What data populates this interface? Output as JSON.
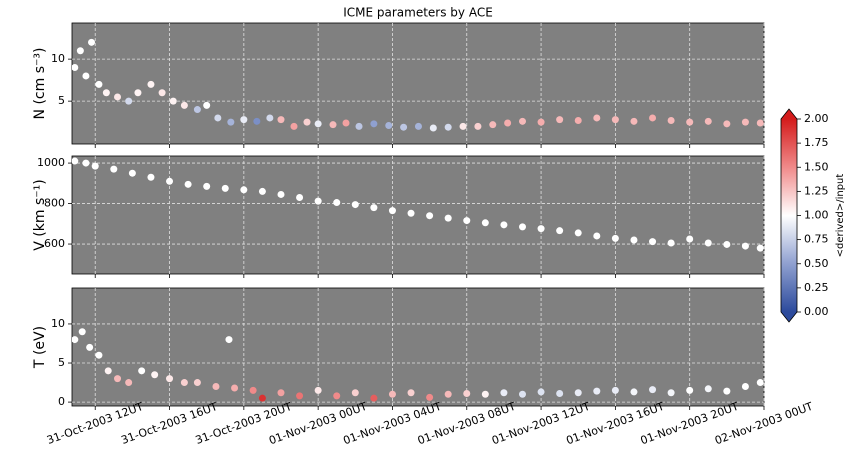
{
  "chart_data": [
    {
      "type": "scatter",
      "title": "ICME parameters by ACE",
      "ylabel": "N (cm s⁻³)",
      "ylim": [
        -0.1,
        14.3
      ],
      "yticks": [
        5,
        10
      ],
      "grid": true,
      "x": [
        10.9,
        11.2,
        11.5,
        11.8,
        12.2,
        12.6,
        13.2,
        13.8,
        14.3,
        15,
        15.6,
        16.2,
        16.8,
        17.5,
        18,
        18.6,
        19.3,
        20,
        20.7,
        21.4,
        22,
        22.7,
        23.4,
        24,
        24.8,
        25.5,
        26.2,
        27,
        27.8,
        28.6,
        29.4,
        30.2,
        31,
        31.8,
        32.6,
        33.4,
        34.2,
        35,
        36,
        37,
        38,
        39,
        40,
        41,
        42,
        43,
        44,
        45,
        46,
        47,
        47.8
      ],
      "series": [
        {
          "values": [
            9,
            11,
            8,
            12,
            7,
            6,
            5.5,
            5,
            6,
            7,
            6,
            5,
            4.5,
            4,
            4.5,
            3,
            2.5,
            2.8,
            2.6,
            3,
            2.8,
            2,
            2.5,
            2.3,
            2.2,
            2.4,
            2,
            2.3,
            2.1,
            1.9,
            2,
            1.8,
            1.9,
            2,
            2,
            2.2,
            2.4,
            2.6,
            2.5,
            2.8,
            2.7,
            3,
            2.8,
            2.6,
            3,
            2.7,
            2.5,
            2.6,
            2.3,
            2.5,
            2.4
          ],
          "c": [
            1.0,
            1.0,
            1.0,
            1.0,
            1.0,
            1.05,
            1.1,
            0.8,
            1.05,
            1.05,
            1.1,
            1.05,
            1.1,
            0.7,
            1.0,
            0.8,
            0.6,
            0.9,
            0.4,
            0.8,
            1.3,
            1.4,
            1.2,
            0.9,
            1.3,
            1.4,
            0.7,
            0.5,
            0.6,
            0.7,
            0.6,
            0.9,
            0.8,
            1.1,
            1.2,
            1.3,
            1.35,
            1.3,
            1.35,
            1.3,
            1.35,
            1.3,
            1.3,
            1.3,
            1.35,
            1.3,
            1.3,
            1.3,
            1.3,
            1.3,
            1.3
          ]
        }
      ]
    },
    {
      "type": "scatter",
      "ylabel": "V (km s⁻¹)",
      "ylim": [
        452,
        1035
      ],
      "yticks": [
        600,
        800,
        1000
      ],
      "grid": true,
      "x": [
        10.9,
        11.5,
        12,
        13,
        14,
        15,
        16,
        17,
        18,
        19,
        20,
        21,
        22,
        23,
        24,
        25,
        26,
        27,
        28,
        29,
        30,
        31,
        32,
        33,
        34,
        35,
        36,
        37,
        38,
        39,
        40,
        41,
        42,
        43,
        44,
        45,
        46,
        47,
        47.8
      ],
      "series": [
        {
          "color": "#ffffff",
          "values": [
            1010,
            1000,
            985,
            970,
            950,
            930,
            910,
            895,
            885,
            875,
            868,
            860,
            845,
            830,
            812,
            805,
            795,
            780,
            765,
            752,
            740,
            728,
            716,
            705,
            695,
            685,
            676,
            666,
            655,
            640,
            628,
            620,
            612,
            605,
            625,
            605,
            598,
            590,
            580
          ]
        }
      ]
    },
    {
      "type": "scatter",
      "ylabel": "T (eV)",
      "ylim": [
        -0.5,
        14.6
      ],
      "yticks": [
        0,
        5,
        10
      ],
      "grid": true,
      "xlim": [
        10.75,
        48
      ],
      "xticks": [
        {
          "value": 12,
          "label": "31-Oct-2003 12UT"
        },
        {
          "value": 16,
          "label": "31-Oct-2003 16UT"
        },
        {
          "value": 20,
          "label": "31-Oct-2003 20UT"
        },
        {
          "value": 24,
          "label": "01-Nov-2003 00UT"
        },
        {
          "value": 28,
          "label": "01-Nov-2003 04UT"
        },
        {
          "value": 32,
          "label": "01-Nov-2003 08UT"
        },
        {
          "value": 36,
          "label": "01-Nov-2003 12UT"
        },
        {
          "value": 40,
          "label": "01-Nov-2003 16UT"
        },
        {
          "value": 44,
          "label": "01-Nov-2003 20UT"
        },
        {
          "value": 48,
          "label": "02-Nov-2003 00UT"
        }
      ],
      "x": [
        10.9,
        11.3,
        11.7,
        12.2,
        12.7,
        13.2,
        13.8,
        14.5,
        15.2,
        16,
        16.8,
        17.5,
        18.5,
        19.2,
        19.5,
        20.5,
        21,
        22,
        23,
        24,
        25,
        26,
        27,
        28,
        29,
        30,
        31,
        32,
        33,
        34,
        35,
        36,
        37,
        38,
        39,
        40,
        41,
        42,
        43,
        44,
        45,
        46,
        47,
        47.8
      ],
      "series": [
        {
          "values": [
            8,
            9,
            7,
            6,
            4,
            3,
            2.5,
            4,
            3.5,
            3,
            2.5,
            2.5,
            2,
            8,
            1.8,
            1.5,
            0.5,
            1.2,
            0.8,
            1.5,
            0.8,
            1.2,
            0.5,
            1,
            1.2,
            0.6,
            1,
            1.1,
            1,
            1.2,
            1,
            1.3,
            1.1,
            1.2,
            1.4,
            1.5,
            1.3,
            1.6,
            1.2,
            1.5,
            1.7,
            1.4,
            2,
            2.5
          ],
          "c": [
            1.0,
            1.0,
            1.0,
            1.0,
            1.05,
            1.3,
            1.3,
            1.0,
            1.05,
            1.1,
            1.2,
            1.2,
            1.3,
            1.0,
            1.35,
            1.5,
            1.9,
            1.4,
            1.6,
            1.1,
            1.5,
            1.2,
            1.7,
            1.3,
            1.2,
            1.5,
            1.3,
            1.2,
            1.05,
            0.9,
            0.85,
            0.85,
            0.85,
            0.9,
            0.9,
            0.9,
            0.95,
            0.9,
            0.95,
            1.0,
            0.95,
            1.0,
            1.0,
            1.0
          ]
        }
      ]
    }
  ],
  "colorbar": {
    "label": "<derived>/input",
    "lim": [
      0,
      2
    ],
    "colors": [
      "#2c4a9c",
      "#8fa0d0",
      "#ffffff",
      "#f08a8a",
      "#d41c1c"
    ],
    "ticks": [
      {
        "value": 0,
        "label": "0.00"
      },
      {
        "value": 0.25,
        "label": "0.25"
      },
      {
        "value": 0.5,
        "label": "0.50"
      },
      {
        "value": 0.75,
        "label": "0.75"
      },
      {
        "value": 1,
        "label": "1.00"
      },
      {
        "value": 1.25,
        "label": "1.25"
      },
      {
        "value": 1.5,
        "label": "1.50"
      },
      {
        "value": 1.75,
        "label": "1.75"
      },
      {
        "value": 2,
        "label": "2.00"
      }
    ]
  }
}
